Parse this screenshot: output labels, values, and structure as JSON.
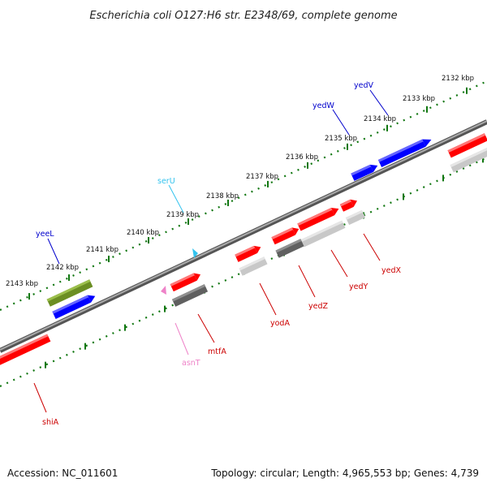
{
  "title": "Escherichia coli O127:H6 str. E2348/69, complete genome",
  "accession": "Accession: NC_011601",
  "topology": "Topology: circular; Length: 4,965,553 bp; Genes: 4,739",
  "colors": {
    "forward_gene": "#ff0000",
    "reverse_gene": "#0000ff",
    "olive_gene": "#6b8e23",
    "cds_grey": "#c0c0c0",
    "cds_dark": "#606060",
    "trna": "#33c3ee",
    "trna_pink": "#ee82c8",
    "backbone": "#808080",
    "tick_green": "#117711"
  },
  "ticks": [
    "2132 kbp",
    "2133 kbp",
    "2134 kbp",
    "2135 kbp",
    "2136 kbp",
    "2137 kbp",
    "2138 kbp",
    "2139 kbp",
    "2140 kbp",
    "2141 kbp",
    "2142 kbp",
    "2143 kbp"
  ],
  "genes": {
    "yedV": "yedV",
    "yedW": "yedW",
    "serU": "serU",
    "yeeL": "yeeL",
    "shiA": "shiA",
    "asnT": "asnT",
    "mtfA": "mtfA",
    "yodA": "yodA",
    "yedZ": "yedZ",
    "yedY": "yedY",
    "yedX": "yedX"
  }
}
